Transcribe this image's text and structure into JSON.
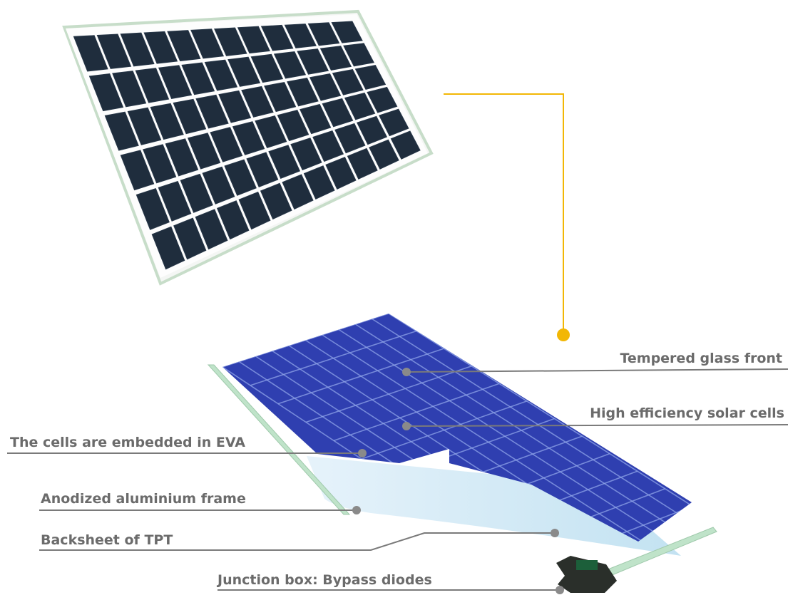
{
  "colors": {
    "leader_line": "#7a7a7a",
    "label_text": "#6b6b6b",
    "connector_accent": "#f2b705",
    "panel_cell": "#1f2d3d",
    "exploded_cell": "#2f3fb0",
    "glass_edge": "#bfe3c9",
    "backsheet": "#cfe8f5",
    "junction_box": "#2a2f2a"
  },
  "icons": {
    "top": "solar-panel-photo",
    "bottom": "exploded-panel-illustration"
  },
  "labels": {
    "tempered_glass": "Tempered glass front",
    "solar_cells": "High efficiency solar cells",
    "eva": "The cells are embedded in EVA",
    "frame": "Anodized aluminium frame",
    "backsheet": "Backsheet of TPT",
    "junction_box": "Junction box: Bypass diodes"
  }
}
